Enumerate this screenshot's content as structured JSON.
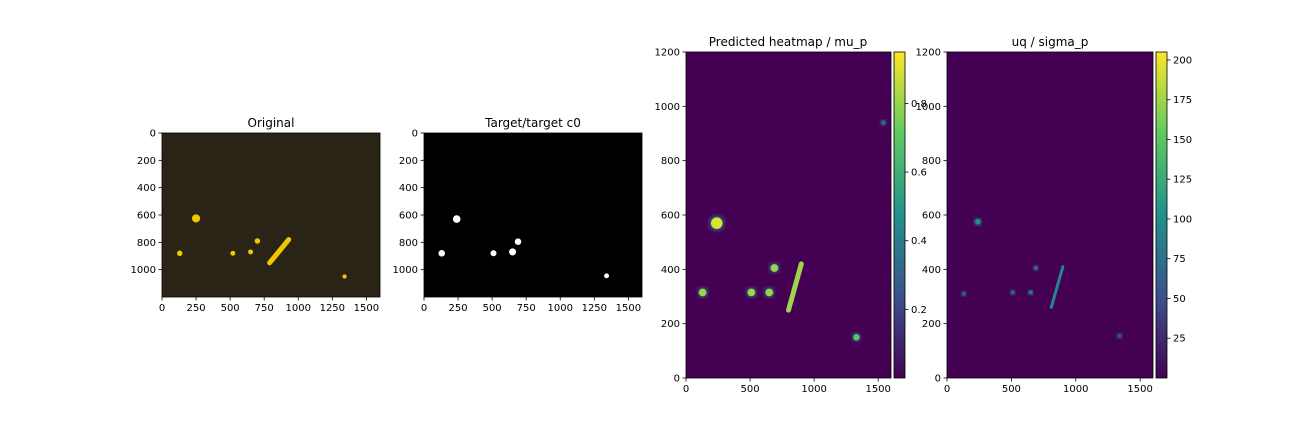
{
  "chart_data": [
    {
      "type": "heatmap",
      "title": "Original",
      "x_ticks": [
        0,
        250,
        500,
        750,
        1000,
        1250,
        1500
      ],
      "y_ticks": [
        0,
        200,
        400,
        600,
        800,
        1000
      ],
      "xlim": [
        0,
        1600
      ],
      "ylim": [
        1200,
        0
      ],
      "colors": {
        "background": "#2a2416",
        "blob": "#f0c800"
      },
      "blobs": [
        {
          "x": 250,
          "y": 625,
          "r": 30
        },
        {
          "x": 130,
          "y": 880,
          "r": 20
        },
        {
          "x": 520,
          "y": 880,
          "r": 18
        },
        {
          "x": 650,
          "y": 870,
          "r": 18
        },
        {
          "x": 700,
          "y": 790,
          "r": 20
        },
        {
          "x": 1340,
          "y": 1050,
          "r": 16
        }
      ],
      "streak": [
        [
          930,
          780
        ],
        [
          790,
          950
        ]
      ]
    },
    {
      "type": "heatmap",
      "title": "Target/target c0",
      "x_ticks": [
        0,
        250,
        500,
        750,
        1000,
        1250,
        1500
      ],
      "y_ticks": [
        0,
        200,
        400,
        600,
        800,
        1000
      ],
      "xlim": [
        0,
        1600
      ],
      "ylim": [
        1200,
        0
      ],
      "colors": {
        "background": "#000000",
        "blob": "#ffffff"
      },
      "blobs": [
        {
          "x": 240,
          "y": 630,
          "r": 28
        },
        {
          "x": 130,
          "y": 880,
          "r": 24
        },
        {
          "x": 510,
          "y": 880,
          "r": 22
        },
        {
          "x": 650,
          "y": 870,
          "r": 26
        },
        {
          "x": 690,
          "y": 795,
          "r": 24
        },
        {
          "x": 1340,
          "y": 1045,
          "r": 18
        }
      ]
    },
    {
      "type": "heatmap",
      "title": "Predicted heatmap / mu_p",
      "x_ticks": [
        0,
        500,
        1000,
        1500
      ],
      "y_ticks": [
        0,
        200,
        400,
        600,
        800,
        1000,
        1200
      ],
      "xlim": [
        0,
        1600
      ],
      "ylim": [
        0,
        1200
      ],
      "colorbar": {
        "ticks": [
          0.2,
          0.4,
          0.6,
          0.8
        ],
        "range": [
          0.0,
          0.95
        ]
      },
      "colors": {
        "background": "#440154",
        "high": "#fde725"
      },
      "blobs": [
        {
          "x": 240,
          "y": 570,
          "r": 45,
          "v": 0.9
        },
        {
          "x": 130,
          "y": 315,
          "r": 30,
          "v": 0.8
        },
        {
          "x": 510,
          "y": 315,
          "r": 30,
          "v": 0.8
        },
        {
          "x": 650,
          "y": 315,
          "r": 30,
          "v": 0.8
        },
        {
          "x": 690,
          "y": 405,
          "r": 30,
          "v": 0.8
        },
        {
          "x": 1330,
          "y": 150,
          "r": 25,
          "v": 0.7
        },
        {
          "x": 1540,
          "y": 940,
          "r": 18,
          "v": 0.3
        }
      ],
      "streak": [
        [
          900,
          420
        ],
        [
          800,
          250
        ]
      ]
    },
    {
      "type": "heatmap",
      "title": "uq / sigma_p",
      "x_ticks": [
        0,
        500,
        1000,
        1500
      ],
      "y_ticks": [
        0,
        200,
        400,
        600,
        800,
        1000,
        1200
      ],
      "xlim": [
        0,
        1600
      ],
      "ylim": [
        0,
        1200
      ],
      "colorbar": {
        "ticks": [
          25,
          50,
          75,
          100,
          125,
          150,
          175,
          200
        ],
        "range": [
          0,
          205
        ]
      },
      "colors": {
        "background": "#440154",
        "high": "#fde725"
      },
      "blobs": [
        {
          "x": 240,
          "y": 575,
          "r": 22,
          "v": 100
        },
        {
          "x": 130,
          "y": 310,
          "r": 14,
          "v": 60
        },
        {
          "x": 510,
          "y": 315,
          "r": 14,
          "v": 70
        },
        {
          "x": 650,
          "y": 315,
          "r": 16,
          "v": 80
        },
        {
          "x": 690,
          "y": 405,
          "r": 14,
          "v": 70
        },
        {
          "x": 1340,
          "y": 155,
          "r": 12,
          "v": 50
        }
      ],
      "streak": [
        [
          900,
          410
        ],
        [
          810,
          260
        ]
      ]
    }
  ]
}
